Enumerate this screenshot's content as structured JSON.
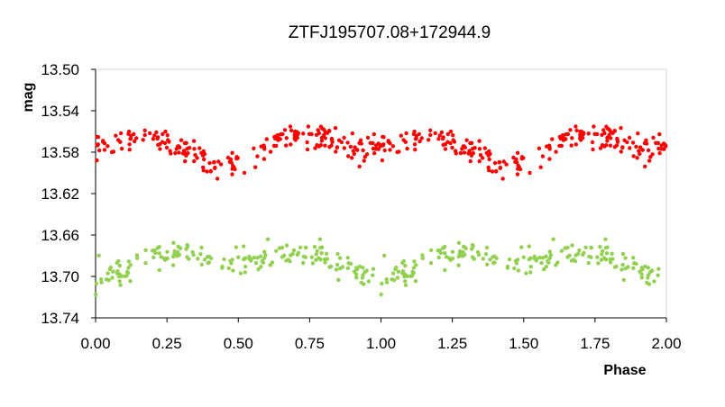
{
  "chart_data": {
    "type": "scatter",
    "title": "ZTFJ195707.08+172944.9",
    "xlabel": "Phase",
    "ylabel": "mag",
    "xlim": [
      0,
      2
    ],
    "ylim": [
      13.5,
      13.74
    ],
    "y_inverted": true,
    "grid": false,
    "legend": "none",
    "xticks": [
      "0.00",
      "0.25",
      "0.50",
      "0.75",
      "1.00",
      "1.25",
      "1.50",
      "1.75",
      "2.00"
    ],
    "yticks": [
      "13.50",
      "13.54",
      "13.58",
      "13.62",
      "13.66",
      "13.70",
      "13.74"
    ],
    "series": [
      {
        "color": "#ff0000",
        "model": {
          "base": 13.575,
          "amp": 0.018,
          "period": 1.0,
          "minimum_phase": 0.45,
          "scatter": 0.011,
          "points_per_cycle": 215
        }
      },
      {
        "color": "#92d050",
        "model": {
          "base": 13.685,
          "amp": 0.016,
          "period": 1.0,
          "minimum_phase": 0.0,
          "scatter": 0.011,
          "points_per_cycle": 175
        }
      }
    ]
  }
}
